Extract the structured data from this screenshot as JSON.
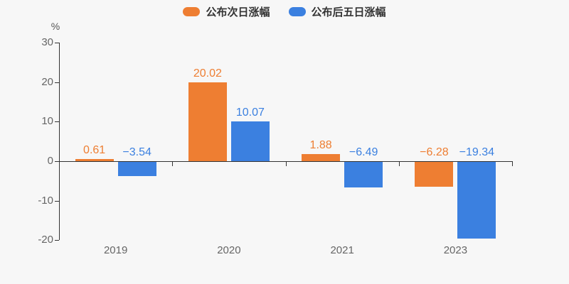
{
  "legend": {
    "items": [
      {
        "label": "公布次日涨幅",
        "color": "#ee7e32"
      },
      {
        "label": "公布后五日涨幅",
        "color": "#3b80e0"
      }
    ]
  },
  "chart_data": {
    "type": "bar",
    "title": "",
    "categories": [
      "2019",
      "2020",
      "2021",
      "2023"
    ],
    "series": [
      {
        "name": "公布次日涨幅",
        "color": "#ee7e32",
        "values": [
          0.61,
          20.02,
          1.88,
          -6.28
        ],
        "labels": [
          "0.61",
          "20.02",
          "1.88",
          "−6.28"
        ]
      },
      {
        "name": "公布后五日涨幅",
        "color": "#3b80e0",
        "values": [
          -3.54,
          10.07,
          -6.49,
          -19.34
        ],
        "labels": [
          "−3.54",
          "10.07",
          "−6.49",
          "−19.34"
        ]
      }
    ],
    "xlabel": "",
    "ylabel": "%",
    "ylim": [
      -20,
      30
    ],
    "yticks": [
      -20,
      -10,
      0,
      10,
      20,
      30
    ],
    "grid": false,
    "legend_position": "top"
  },
  "colors": {
    "background": "#f7f7f7",
    "axis": "#333333",
    "tick_text": "#666666",
    "legend_text": "#333333"
  }
}
